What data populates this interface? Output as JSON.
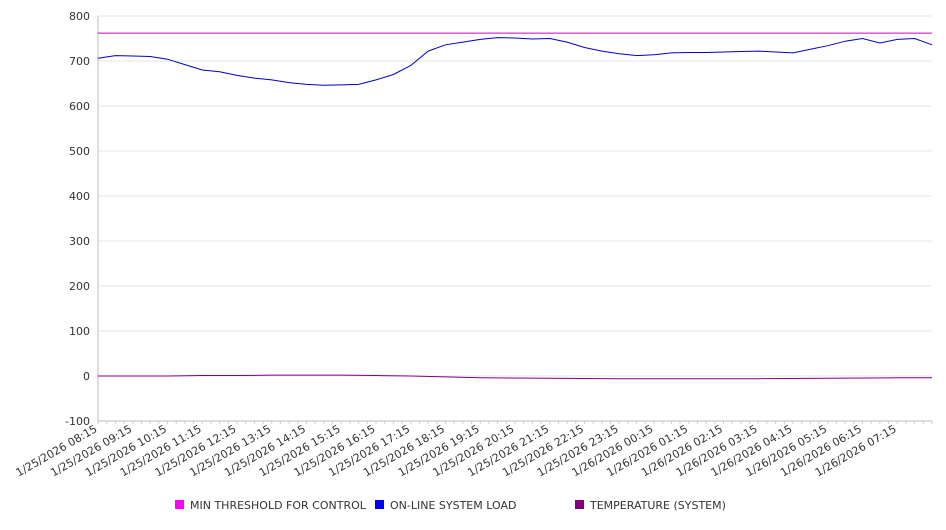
{
  "chart_data": {
    "type": "line",
    "title": "",
    "xlabel": "",
    "ylabel": "",
    "ylim": [
      -100,
      800
    ],
    "yticks": [
      800,
      700,
      600,
      500,
      400,
      300,
      200,
      100,
      0,
      -100
    ],
    "grid": true,
    "legend_position": "bottom",
    "x_tick_labels": [
      "1/25/2026 08:15",
      "1/25/2026 09:15",
      "1/25/2026 10:15",
      "1/25/2026 11:15",
      "1/25/2026 12:15",
      "1/25/2026 13:15",
      "1/25/2026 14:15",
      "1/25/2026 15:15",
      "1/25/2026 16:15",
      "1/25/2026 17:15",
      "1/25/2026 18:15",
      "1/25/2026 19:15",
      "1/25/2026 20:15",
      "1/25/2026 21:15",
      "1/25/2026 22:15",
      "1/25/2026 23:15",
      "1/26/2026 00:15",
      "1/26/2026 01:15",
      "1/26/2026 02:15",
      "1/26/2026 03:15",
      "1/26/2026 04:15",
      "1/26/2026 05:15",
      "1/26/2026 06:15",
      "1/26/2026 07:15"
    ],
    "x_range": [
      "1/25/2026 08:15",
      "1/26/2026 08:15"
    ],
    "series": [
      {
        "name": "MIN THRESHOLD FOR CONTROL",
        "color": "#cc00cc",
        "legend_color": "#ff00ff",
        "points": [
          [
            "1/25/2026 08:15",
            762
          ],
          [
            "1/26/2026 08:15",
            762
          ]
        ]
      },
      {
        "name": "ON-LINE SYSTEM LOAD",
        "color": "#0000cc",
        "legend_color": "#0000ff",
        "points": [
          [
            "1/25/2026 08:15",
            706
          ],
          [
            "1/25/2026 08:45",
            712
          ],
          [
            "1/25/2026 09:15",
            711
          ],
          [
            "1/25/2026 09:45",
            710
          ],
          [
            "1/25/2026 10:15",
            704
          ],
          [
            "1/25/2026 10:45",
            692
          ],
          [
            "1/25/2026 11:15",
            680
          ],
          [
            "1/25/2026 11:45",
            676
          ],
          [
            "1/25/2026 12:15",
            668
          ],
          [
            "1/25/2026 12:45",
            662
          ],
          [
            "1/25/2026 13:15",
            658
          ],
          [
            "1/25/2026 13:45",
            652
          ],
          [
            "1/25/2026 14:15",
            648
          ],
          [
            "1/25/2026 14:45",
            646
          ],
          [
            "1/25/2026 15:15",
            647
          ],
          [
            "1/25/2026 15:45",
            648
          ],
          [
            "1/25/2026 16:15",
            658
          ],
          [
            "1/25/2026 16:45",
            670
          ],
          [
            "1/25/2026 17:15",
            690
          ],
          [
            "1/25/2026 17:45",
            722
          ],
          [
            "1/25/2026 18:15",
            736
          ],
          [
            "1/25/2026 18:45",
            742
          ],
          [
            "1/25/2026 19:15",
            748
          ],
          [
            "1/25/2026 19:45",
            752
          ],
          [
            "1/25/2026 20:15",
            751
          ],
          [
            "1/25/2026 20:45",
            749
          ],
          [
            "1/25/2026 21:15",
            750
          ],
          [
            "1/25/2026 21:45",
            742
          ],
          [
            "1/25/2026 22:15",
            730
          ],
          [
            "1/25/2026 22:45",
            722
          ],
          [
            "1/25/2026 23:15",
            716
          ],
          [
            "1/25/2026 23:45",
            712
          ],
          [
            "1/26/2026 00:15",
            714
          ],
          [
            "1/26/2026 00:45",
            718
          ],
          [
            "1/26/2026 01:15",
            719
          ],
          [
            "1/26/2026 01:45",
            719
          ],
          [
            "1/26/2026 02:15",
            720
          ],
          [
            "1/26/2026 02:45",
            721
          ],
          [
            "1/26/2026 03:15",
            722
          ],
          [
            "1/26/2026 03:45",
            720
          ],
          [
            "1/26/2026 04:15",
            718
          ],
          [
            "1/26/2026 04:45",
            726
          ],
          [
            "1/26/2026 05:15",
            734
          ],
          [
            "1/26/2026 05:45",
            744
          ],
          [
            "1/26/2026 06:15",
            750
          ],
          [
            "1/26/2026 06:45",
            740
          ],
          [
            "1/26/2026 07:15",
            748
          ],
          [
            "1/26/2026 07:45",
            750
          ],
          [
            "1/26/2026 08:15",
            736
          ]
        ]
      },
      {
        "name": "TEMPERATURE (SYSTEM)",
        "color": "#800080",
        "legend_color": "#800080",
        "points": [
          [
            "1/25/2026 08:15",
            0
          ],
          [
            "1/25/2026 10:15",
            0
          ],
          [
            "1/25/2026 11:15",
            1
          ],
          [
            "1/25/2026 12:15",
            1
          ],
          [
            "1/25/2026 13:15",
            2
          ],
          [
            "1/25/2026 15:15",
            2
          ],
          [
            "1/25/2026 16:15",
            1
          ],
          [
            "1/25/2026 17:15",
            0
          ],
          [
            "1/25/2026 18:15",
            -2
          ],
          [
            "1/25/2026 19:15",
            -4
          ],
          [
            "1/25/2026 21:15",
            -5
          ],
          [
            "1/25/2026 23:15",
            -6
          ],
          [
            "1/26/2026 03:15",
            -6
          ],
          [
            "1/26/2026 05:15",
            -5
          ],
          [
            "1/26/2026 07:15",
            -4
          ],
          [
            "1/26/2026 08:15",
            -4
          ]
        ]
      }
    ]
  }
}
